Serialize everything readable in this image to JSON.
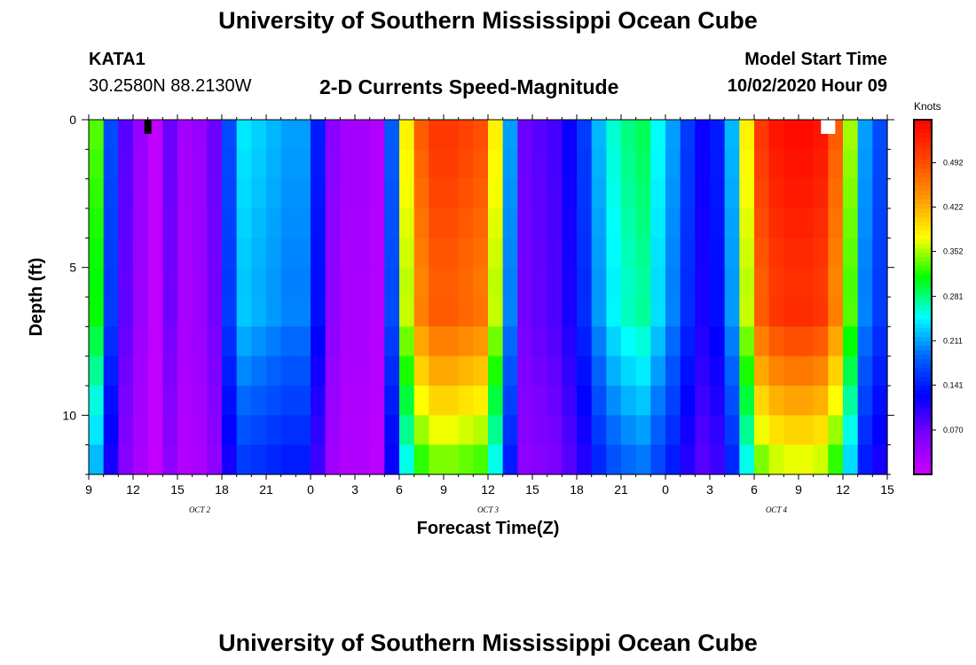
{
  "title": "University of Southern Mississippi Ocean Cube",
  "footer_title": "University of Southern Mississippi Ocean Cube",
  "station": {
    "name": "KATA1",
    "coords": "30.2580N 88.2130W"
  },
  "subtitle": "2-D Currents Speed-Magnitude",
  "model": {
    "label": "Model Start Time",
    "value": "10/02/2020 Hour 09"
  },
  "chart_data": {
    "type": "heatmap",
    "title": "2-D Currents Speed-Magnitude",
    "xlabel": "Forecast Time(Z)",
    "ylabel": "Depth (ft)",
    "ylim": [
      0,
      12
    ],
    "xlim": [
      0,
      54
    ],
    "x_ticks": [
      "9",
      "12",
      "15",
      "18",
      "21",
      "0",
      "3",
      "6",
      "9",
      "12",
      "15",
      "18",
      "21",
      "0",
      "3",
      "6",
      "9",
      "12",
      "15"
    ],
    "date_labels": [
      {
        "text": "OCT 2",
        "x_hours": 7.5
      },
      {
        "text": "OCT 3",
        "x_hours": 27
      },
      {
        "text": "OCT 4",
        "x_hours": 46.5
      }
    ],
    "y_ticks": [
      "0",
      "5",
      "10"
    ],
    "y_tick_values": [
      0,
      5,
      10
    ],
    "colorbar": {
      "label": "Knots",
      "ticks": [
        "0.492",
        "0.422",
        "0.352",
        "0.281",
        "0.211",
        "0.141",
        "0.070"
      ],
      "tick_values": [
        0.492,
        0.422,
        0.352,
        0.281,
        0.211,
        0.141,
        0.07
      ],
      "range": [
        0.0,
        0.56
      ],
      "colors": [
        "#cc00ff",
        "#7a00ff",
        "#0000ff",
        "#0066ff",
        "#00ffff",
        "#00ff00",
        "#ffff00",
        "#ff9900",
        "#ff4400",
        "#ff0000"
      ]
    },
    "surface_speed_knots_by_hour": [
      0.33,
      0.17,
      0.08,
      0.04,
      0.01,
      0.07,
      0.03,
      0.04,
      0.07,
      0.17,
      0.24,
      0.23,
      0.22,
      0.21,
      0.21,
      0.14,
      0.05,
      0.03,
      0.03,
      0.02,
      0.18,
      0.38,
      0.48,
      0.51,
      0.51,
      0.5,
      0.49,
      0.38,
      0.21,
      0.07,
      0.08,
      0.09,
      0.12,
      0.16,
      0.22,
      0.26,
      0.28,
      0.29,
      0.25,
      0.21,
      0.16,
      0.12,
      0.14,
      0.22,
      0.38,
      0.51,
      0.54,
      0.55,
      0.55,
      0.54,
      0.48,
      0.35,
      0.21,
      0.17
    ],
    "markers": [
      {
        "label": "black marker",
        "x_hours": 4,
        "depth_ft": 0.3
      },
      {
        "label": "white marker",
        "x_hours": 50,
        "depth_ft": 0.3
      }
    ]
  }
}
